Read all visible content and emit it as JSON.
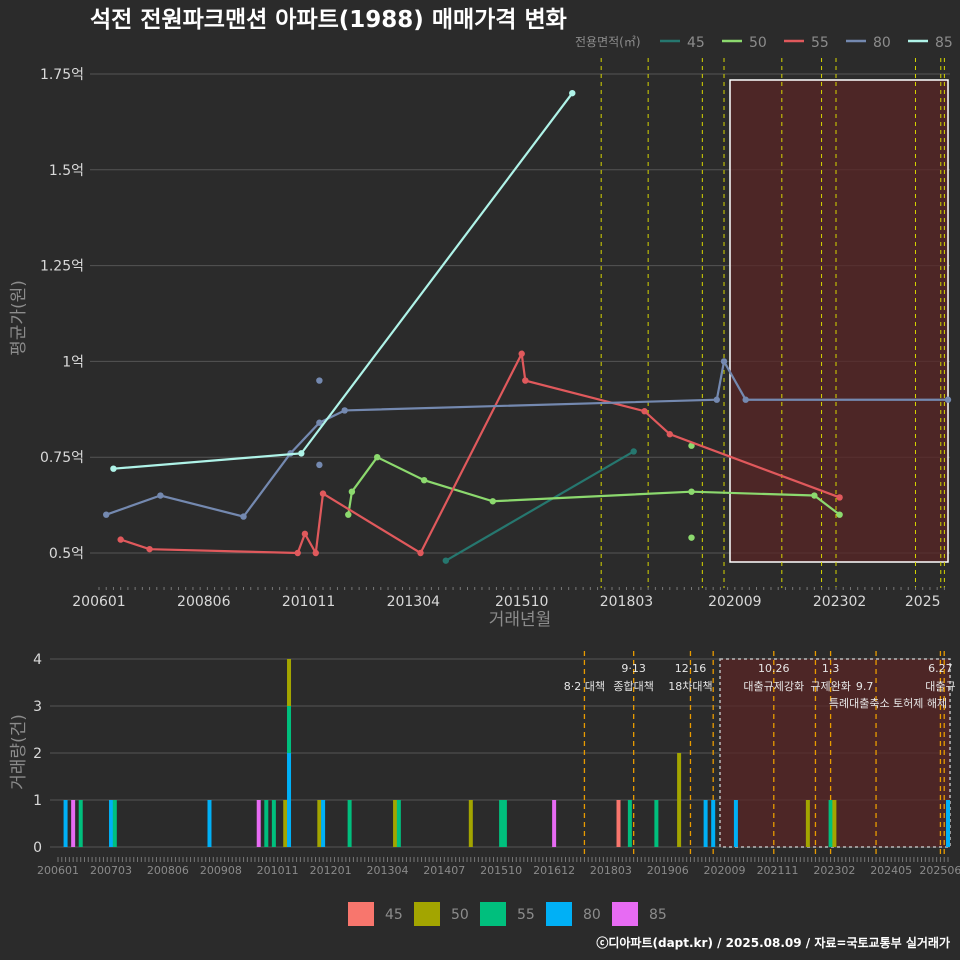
{
  "chart_data": [
    {
      "type": "line",
      "title": "석전 전원파크맨션 아파트(1988) 매매가격 변화",
      "ylabel": "평균가(원)",
      "xlabel": "거래년월",
      "legend_title": "전용면적(㎡)",
      "legend_position": "top-right",
      "x_ticks": [
        "200601",
        "200806",
        "201011",
        "201304",
        "201510",
        "201803",
        "202009",
        "202302",
        "2025"
      ],
      "y_ticks": [
        "0.5억",
        "0.75억",
        "1억",
        "1.25억",
        "1.5억",
        "1.75억"
      ],
      "ylim": [
        0.42,
        1.8
      ],
      "grid": true,
      "highlight_range": [
        "2020-06",
        "2025-08"
      ],
      "policy_dates": [
        "2017-08",
        "2018-09",
        "2019-12",
        "2020-06",
        "2021-10",
        "2022-09",
        "2023-01",
        "2024-11",
        "2025-06",
        "2025-07"
      ],
      "series": [
        {
          "name": "45",
          "color": "#26776f",
          "points": [
            {
              "x": "2014-01",
              "y": 0.48
            },
            {
              "x": "2018-05",
              "y": 0.765
            }
          ]
        },
        {
          "name": "50",
          "color": "#8cd96e",
          "points": [
            {
              "x": "2011-10",
              "y": 0.6
            },
            {
              "x": "2011-11",
              "y": 0.66
            },
            {
              "x": "2012-06",
              "y": 0.75
            },
            {
              "x": "2013-07",
              "y": 0.69
            },
            {
              "x": "2015-02",
              "y": 0.635
            },
            {
              "x": "2019-09",
              "y": 0.66
            },
            {
              "x": "2022-07",
              "y": 0.65
            },
            {
              "x": "2023-02",
              "y": 0.6
            }
          ],
          "extra_points": [
            {
              "x": "2019-09",
              "y": 0.54
            },
            {
              "x": "2019-09",
              "y": 0.78
            }
          ]
        },
        {
          "name": "55",
          "color": "#e0595c",
          "points": [
            {
              "x": "2006-07",
              "y": 0.535
            },
            {
              "x": "2007-03",
              "y": 0.51
            },
            {
              "x": "2010-08",
              "y": 0.5
            },
            {
              "x": "2010-10",
              "y": 0.55
            },
            {
              "x": "2011-01",
              "y": 0.5
            },
            {
              "x": "2011-03",
              "y": 0.655
            },
            {
              "x": "2013-06",
              "y": 0.5
            },
            {
              "x": "2015-10",
              "y": 1.02
            },
            {
              "x": "2015-11",
              "y": 0.95
            },
            {
              "x": "2018-08",
              "y": 0.87
            },
            {
              "x": "2019-03",
              "y": 0.81
            },
            {
              "x": "2023-02",
              "y": 0.645
            }
          ]
        },
        {
          "name": "80",
          "color": "#7489b0",
          "points": [
            {
              "x": "2006-03",
              "y": 0.6
            },
            {
              "x": "2007-06",
              "y": 0.65
            },
            {
              "x": "2009-05",
              "y": 0.595
            },
            {
              "x": "2010-06",
              "y": 0.76
            },
            {
              "x": "2011-02",
              "y": 0.84
            },
            {
              "x": "2011-09",
              "y": 0.872
            },
            {
              "x": "2020-04",
              "y": 0.9
            },
            {
              "x": "2020-06",
              "y": 1.0
            },
            {
              "x": "2020-12",
              "y": 0.9
            },
            {
              "x": "2025-08",
              "y": 0.9
            }
          ],
          "extra_points": [
            {
              "x": "2011-02",
              "y": 0.95
            },
            {
              "x": "2011-02",
              "y": 0.73
            }
          ]
        },
        {
          "name": "85",
          "color": "#aff3e8",
          "points": [
            {
              "x": "2006-05",
              "y": 0.72
            },
            {
              "x": "2010-09",
              "y": 0.76
            },
            {
              "x": "2016-12",
              "y": 1.7
            }
          ]
        }
      ]
    },
    {
      "type": "bar",
      "ylabel": "거래량(건)",
      "x_ticks": [
        "200601",
        "200703",
        "200806",
        "200908",
        "201011",
        "201201",
        "201304",
        "201407",
        "201510",
        "201612",
        "201803",
        "201906",
        "202009",
        "202111",
        "202302",
        "202405",
        "202506"
      ],
      "y_ticks": [
        "0",
        "1",
        "2",
        "3",
        "4"
      ],
      "ylim": [
        0,
        4
      ],
      "highlight_range": [
        "2020-06",
        "2025-08"
      ],
      "colors": {
        "45": "#f8766d",
        "50": "#a3a500",
        "55": "#00bf7d",
        "80": "#00b0f6",
        "85": "#e76bf3"
      },
      "legend": [
        "45",
        "50",
        "55",
        "80",
        "85"
      ],
      "legend_position": "bottom",
      "policies": [
        {
          "date": "2017-08",
          "label1": "",
          "label2": "8·2 대책"
        },
        {
          "date": "2018-09",
          "label1": "9·13",
          "label2": "종합대책"
        },
        {
          "date": "2019-12",
          "label1": "12·16",
          "label2": "18차대책"
        },
        {
          "date": "2020-06",
          "label1": "",
          "label2": ""
        },
        {
          "date": "2021-10",
          "label1": "10.26",
          "label2": "대출규제강화"
        },
        {
          "date": "2022-09",
          "label1": "",
          "label2": ""
        },
        {
          "date": "2023-01",
          "label1": "1.3",
          "label2": "규제완화"
        },
        {
          "date": "2024-01",
          "label1": "",
          "label2": ""
        },
        {
          "date": "2025-06",
          "label1": "6.27",
          "label2": "대출규"
        },
        {
          "date": "2025-07",
          "label1": "",
          "label2": ""
        }
      ],
      "policy_third_line": {
        "date": "2023-01",
        "text": "9.7"
      },
      "policy_fourth_line": "특례대출축소 토허제 해제",
      "bars": [
        {
          "x": "2006-03",
          "v": 1,
          "c": "80"
        },
        {
          "x": "2006-05",
          "v": 1,
          "c": "85"
        },
        {
          "x": "2006-07",
          "v": 1,
          "c": "55"
        },
        {
          "x": "2007-03",
          "v": 1,
          "c": "80"
        },
        {
          "x": "2007-04",
          "v": 1,
          "c": "55"
        },
        {
          "x": "2009-05",
          "v": 1,
          "c": "80"
        },
        {
          "x": "2010-06",
          "v": 1,
          "c": "85"
        },
        {
          "x": "2010-08",
          "v": 1,
          "c": "55"
        },
        {
          "x": "2010-10",
          "v": 1,
          "c": "55"
        },
        {
          "x": "2011-01",
          "v": 1,
          "c": "50"
        },
        {
          "x": "2011-02",
          "stack": [
            {
              "v": 2,
              "c": "80"
            },
            {
              "v": 1,
              "c": "55"
            },
            {
              "v": 1,
              "c": "50"
            }
          ]
        },
        {
          "x": "2011-10",
          "v": 1,
          "c": "50"
        },
        {
          "x": "2011-11",
          "v": 1,
          "c": "80"
        },
        {
          "x": "2012-06",
          "v": 1,
          "c": "55"
        },
        {
          "x": "2013-06",
          "v": 1,
          "c": "50"
        },
        {
          "x": "2013-07",
          "v": 1,
          "c": "55"
        },
        {
          "x": "2015-02",
          "v": 1,
          "c": "50"
        },
        {
          "x": "2015-10",
          "v": 1,
          "c": "55"
        },
        {
          "x": "2015-11",
          "v": 1,
          "c": "55"
        },
        {
          "x": "2016-12",
          "v": 1,
          "c": "85"
        },
        {
          "x": "2018-05",
          "v": 1,
          "c": "45"
        },
        {
          "x": "2018-08",
          "v": 1,
          "c": "55"
        },
        {
          "x": "2019-03",
          "v": 1,
          "c": "55"
        },
        {
          "x": "2019-09",
          "v": 2,
          "c": "50"
        },
        {
          "x": "2020-04",
          "v": 1,
          "c": "80"
        },
        {
          "x": "2020-06",
          "v": 1,
          "c": "80"
        },
        {
          "x": "2020-12",
          "v": 1,
          "c": "80"
        },
        {
          "x": "2022-07",
          "v": 1,
          "c": "50"
        },
        {
          "x": "2023-01",
          "v": 1,
          "c": "55"
        },
        {
          "x": "2023-02",
          "v": 1,
          "c": "50"
        },
        {
          "x": "2025-08",
          "v": 1,
          "c": "80"
        }
      ]
    }
  ],
  "footer": "ⓒ디아파트(dapt.kr) / 2025.08.09 / 자료=국토교통부 실거래가"
}
